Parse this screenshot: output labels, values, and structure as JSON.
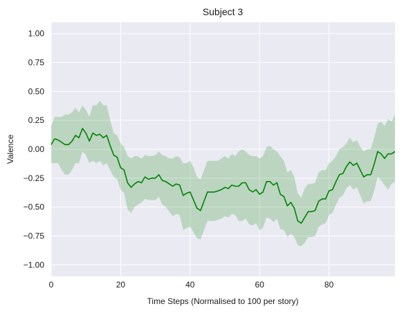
{
  "chart_data": {
    "type": "line",
    "title": "Subject 3",
    "xlabel": "Time Steps (Normalised to 100 per story)",
    "ylabel": "Valence",
    "xlim": [
      0,
      99
    ],
    "ylim": [
      -1.1,
      1.1
    ],
    "xticks": [
      0,
      20,
      40,
      60,
      80
    ],
    "xtick_labels": [
      "0",
      "20",
      "40",
      "60",
      "80"
    ],
    "yticks": [
      1.0,
      0.75,
      0.5,
      0.25,
      0.0,
      -0.25,
      -0.5,
      -0.75,
      -1.0
    ],
    "ytick_labels": [
      "1.00",
      "0.75",
      "0.50",
      "0.25",
      "0.00",
      "−0.25",
      "−0.50",
      "−0.75",
      "−1.00"
    ],
    "grid": true,
    "background": "#eaeaf2",
    "line_color": "#008000",
    "band_color": "#008000",
    "band_opacity": 0.2,
    "x": [
      0,
      1,
      2,
      3,
      4,
      5,
      6,
      7,
      8,
      9,
      10,
      11,
      12,
      13,
      14,
      15,
      16,
      17,
      18,
      19,
      20,
      21,
      22,
      23,
      24,
      25,
      26,
      27,
      28,
      29,
      30,
      31,
      32,
      33,
      34,
      35,
      36,
      37,
      38,
      39,
      40,
      41,
      42,
      43,
      44,
      45,
      46,
      47,
      48,
      49,
      50,
      51,
      52,
      53,
      54,
      55,
      56,
      57,
      58,
      59,
      60,
      61,
      62,
      63,
      64,
      65,
      66,
      67,
      68,
      69,
      70,
      71,
      72,
      73,
      74,
      75,
      76,
      77,
      78,
      79,
      80,
      81,
      82,
      83,
      84,
      85,
      86,
      87,
      88,
      89,
      90,
      91,
      92,
      93,
      94,
      95,
      96,
      97,
      98,
      99
    ],
    "series": [
      {
        "values": [
          0.04,
          0.09,
          0.08,
          0.06,
          0.04,
          0.04,
          0.07,
          0.12,
          0.1,
          0.18,
          0.14,
          0.07,
          0.14,
          0.12,
          0.13,
          0.1,
          0.12,
          0.03,
          -0.05,
          -0.07,
          -0.16,
          -0.18,
          -0.29,
          -0.33,
          -0.3,
          -0.28,
          -0.29,
          -0.24,
          -0.26,
          -0.25,
          -0.25,
          -0.22,
          -0.27,
          -0.28,
          -0.3,
          -0.32,
          -0.3,
          -0.31,
          -0.4,
          -0.38,
          -0.37,
          -0.44,
          -0.51,
          -0.53,
          -0.45,
          -0.37,
          -0.37,
          -0.37,
          -0.36,
          -0.35,
          -0.33,
          -0.34,
          -0.31,
          -0.32,
          -0.32,
          -0.29,
          -0.29,
          -0.35,
          -0.37,
          -0.35,
          -0.39,
          -0.37,
          -0.28,
          -0.28,
          -0.31,
          -0.29,
          -0.39,
          -0.41,
          -0.49,
          -0.46,
          -0.51,
          -0.62,
          -0.64,
          -0.59,
          -0.54,
          -0.54,
          -0.53,
          -0.45,
          -0.43,
          -0.43,
          -0.36,
          -0.35,
          -0.28,
          -0.22,
          -0.21,
          -0.15,
          -0.11,
          -0.14,
          -0.12,
          -0.18,
          -0.24,
          -0.22,
          -0.22,
          -0.13,
          -0.02,
          -0.04,
          -0.08,
          -0.04,
          -0.04,
          -0.02
        ],
        "lower": [
          -0.12,
          -0.12,
          -0.12,
          -0.18,
          -0.22,
          -0.22,
          -0.18,
          -0.12,
          -0.12,
          -0.02,
          -0.05,
          -0.12,
          -0.1,
          -0.12,
          -0.1,
          -0.14,
          -0.12,
          -0.18,
          -0.24,
          -0.26,
          -0.35,
          -0.38,
          -0.52,
          -0.55,
          -0.5,
          -0.48,
          -0.46,
          -0.43,
          -0.44,
          -0.44,
          -0.44,
          -0.41,
          -0.48,
          -0.5,
          -0.54,
          -0.58,
          -0.56,
          -0.57,
          -0.7,
          -0.68,
          -0.67,
          -0.72,
          -0.77,
          -0.78,
          -0.7,
          -0.62,
          -0.62,
          -0.62,
          -0.61,
          -0.6,
          -0.58,
          -0.59,
          -0.56,
          -0.57,
          -0.62,
          -0.62,
          -0.6,
          -0.65,
          -0.66,
          -0.64,
          -0.7,
          -0.68,
          -0.59,
          -0.6,
          -0.63,
          -0.6,
          -0.69,
          -0.7,
          -0.76,
          -0.73,
          -0.76,
          -0.83,
          -0.84,
          -0.81,
          -0.76,
          -0.76,
          -0.75,
          -0.67,
          -0.65,
          -0.64,
          -0.57,
          -0.55,
          -0.48,
          -0.42,
          -0.4,
          -0.34,
          -0.31,
          -0.35,
          -0.33,
          -0.4,
          -0.47,
          -0.45,
          -0.45,
          -0.36,
          -0.24,
          -0.27,
          -0.31,
          -0.35,
          -0.3,
          -0.28
        ],
        "upper": [
          0.2,
          0.28,
          0.28,
          0.28,
          0.3,
          0.3,
          0.32,
          0.36,
          0.32,
          0.38,
          0.34,
          0.28,
          0.38,
          0.38,
          0.42,
          0.38,
          0.38,
          0.25,
          0.14,
          0.12,
          0.05,
          0.02,
          -0.06,
          -0.08,
          -0.06,
          -0.06,
          -0.08,
          -0.05,
          -0.06,
          -0.06,
          -0.05,
          -0.02,
          -0.05,
          -0.06,
          -0.08,
          -0.08,
          -0.06,
          -0.07,
          -0.12,
          -0.12,
          -0.1,
          -0.16,
          -0.24,
          -0.26,
          -0.18,
          -0.1,
          -0.1,
          -0.1,
          -0.1,
          -0.08,
          -0.06,
          -0.08,
          -0.04,
          -0.06,
          -0.02,
          0.0,
          -0.02,
          -0.05,
          -0.06,
          -0.06,
          -0.08,
          -0.06,
          0.02,
          0.03,
          0.0,
          -0.02,
          -0.06,
          -0.1,
          -0.2,
          -0.18,
          -0.24,
          -0.38,
          -0.42,
          -0.34,
          -0.3,
          -0.3,
          -0.29,
          -0.2,
          -0.18,
          -0.18,
          -0.12,
          -0.1,
          -0.06,
          0.0,
          0.02,
          0.05,
          0.1,
          0.06,
          0.08,
          0.02,
          -0.02,
          0.0,
          0.0,
          0.1,
          0.22,
          0.24,
          0.2,
          0.26,
          0.24,
          0.3
        ]
      }
    ]
  }
}
